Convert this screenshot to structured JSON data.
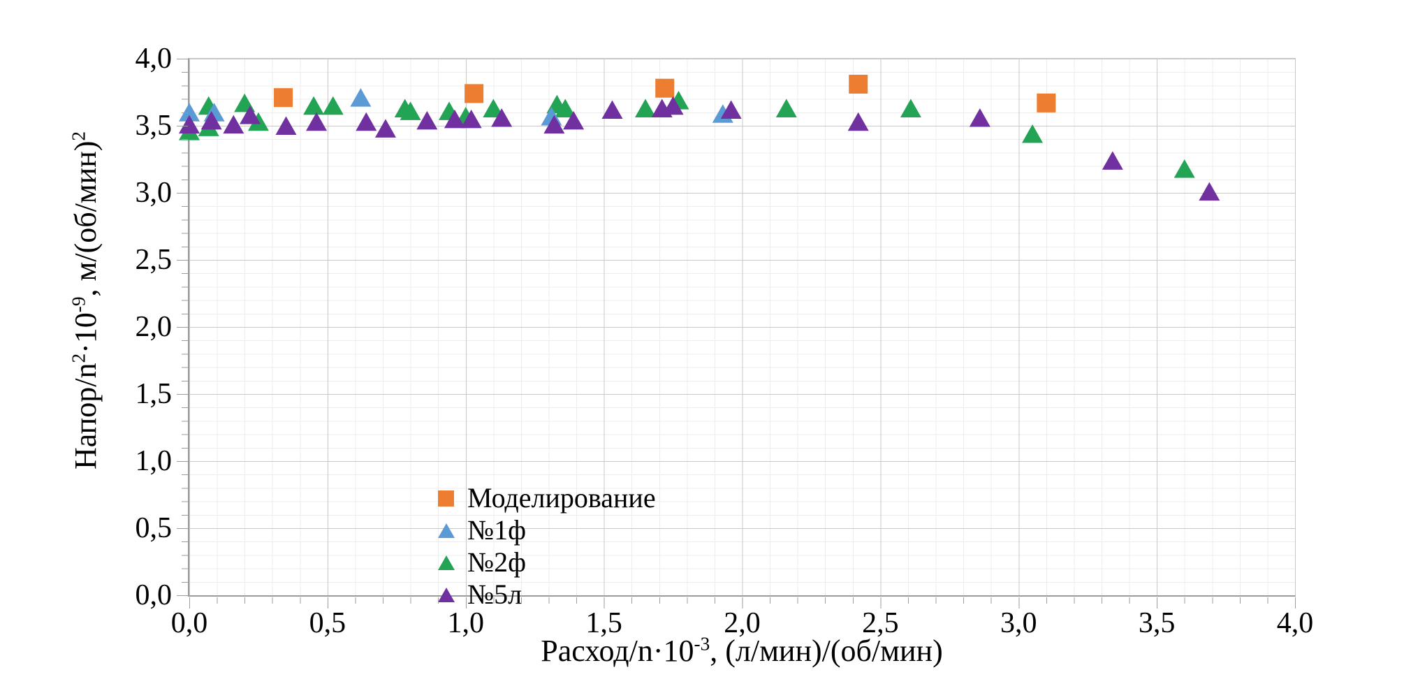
{
  "chart_data": {
    "type": "scatter",
    "title": "",
    "xlabel_segments": [
      {
        "t": "Расход/n·10"
      },
      {
        "t": "-3",
        "sup": true
      },
      {
        "t": ", (л/мин)/(об/мин)"
      }
    ],
    "ylabel_segments": [
      {
        "t": "Напор/n"
      },
      {
        "t": "2",
        "sup": true
      },
      {
        "t": "·10"
      },
      {
        "t": "-9",
        "sup": true
      },
      {
        "t": ", м/(об/мин)"
      },
      {
        "t": "2",
        "sup": true
      }
    ],
    "xlim": [
      0,
      4
    ],
    "ylim": [
      0,
      4
    ],
    "x_ticks": [
      "0,0",
      "0,5",
      "1,0",
      "1,5",
      "2,0",
      "2,5",
      "3,0",
      "3,5",
      "4,0"
    ],
    "y_ticks": [
      "0,0",
      "0,5",
      "1,0",
      "1,5",
      "2,0",
      "2,5",
      "3,0",
      "3,5",
      "4,0"
    ],
    "major_step": 0.5,
    "minor_step": 0.1,
    "grid": "major+minor",
    "legend_position": "inside-lower-left",
    "series": [
      {
        "name": "Моделирование",
        "marker": "square",
        "color": "#ED7D31",
        "z": 0,
        "points": [
          [
            0.34,
            3.71
          ],
          [
            1.03,
            3.74
          ],
          [
            1.72,
            3.78
          ],
          [
            2.42,
            3.81
          ],
          [
            3.1,
            3.67
          ]
        ]
      },
      {
        "name": "№1ф",
        "marker": "triangle",
        "color": "#5B9BD5",
        "z": 2,
        "points": [
          [
            0.0,
            3.6
          ],
          [
            0.09,
            3.6
          ],
          [
            0.62,
            3.71
          ],
          [
            1.31,
            3.57
          ],
          [
            1.93,
            3.59
          ]
        ]
      },
      {
        "name": "№2ф",
        "marker": "triangle",
        "color": "#23A455",
        "z": 1,
        "points": [
          [
            0.0,
            3.46
          ],
          [
            0.07,
            3.65
          ],
          [
            0.07,
            3.49
          ],
          [
            0.2,
            3.67
          ],
          [
            0.25,
            3.53
          ],
          [
            0.45,
            3.65
          ],
          [
            0.52,
            3.65
          ],
          [
            0.78,
            3.63
          ],
          [
            0.8,
            3.61
          ],
          [
            0.94,
            3.61
          ],
          [
            1.0,
            3.57
          ],
          [
            1.1,
            3.63
          ],
          [
            1.33,
            3.66
          ],
          [
            1.36,
            3.63
          ],
          [
            1.65,
            3.63
          ],
          [
            1.77,
            3.69
          ],
          [
            2.16,
            3.63
          ],
          [
            2.61,
            3.63
          ],
          [
            3.05,
            3.44
          ],
          [
            3.6,
            3.18
          ]
        ]
      },
      {
        "name": "№5л",
        "marker": "triangle",
        "color": "#7030A0",
        "z": 3,
        "points": [
          [
            0.0,
            3.51
          ],
          [
            0.08,
            3.54
          ],
          [
            0.16,
            3.51
          ],
          [
            0.22,
            3.58
          ],
          [
            0.35,
            3.5
          ],
          [
            0.46,
            3.53
          ],
          [
            0.64,
            3.53
          ],
          [
            0.71,
            3.48
          ],
          [
            0.86,
            3.54
          ],
          [
            0.96,
            3.55
          ],
          [
            1.02,
            3.55
          ],
          [
            1.13,
            3.56
          ],
          [
            1.32,
            3.51
          ],
          [
            1.39,
            3.54
          ],
          [
            1.53,
            3.62
          ],
          [
            1.71,
            3.63
          ],
          [
            1.75,
            3.65
          ],
          [
            1.96,
            3.62
          ],
          [
            2.42,
            3.53
          ],
          [
            2.86,
            3.56
          ],
          [
            3.34,
            3.24
          ],
          [
            3.69,
            3.01
          ]
        ]
      }
    ],
    "colors": {
      "axis_line": "#9b9b9b",
      "major_grid": "#c8c8c8",
      "minor_grid": "#ececec",
      "text": "#000000"
    }
  }
}
